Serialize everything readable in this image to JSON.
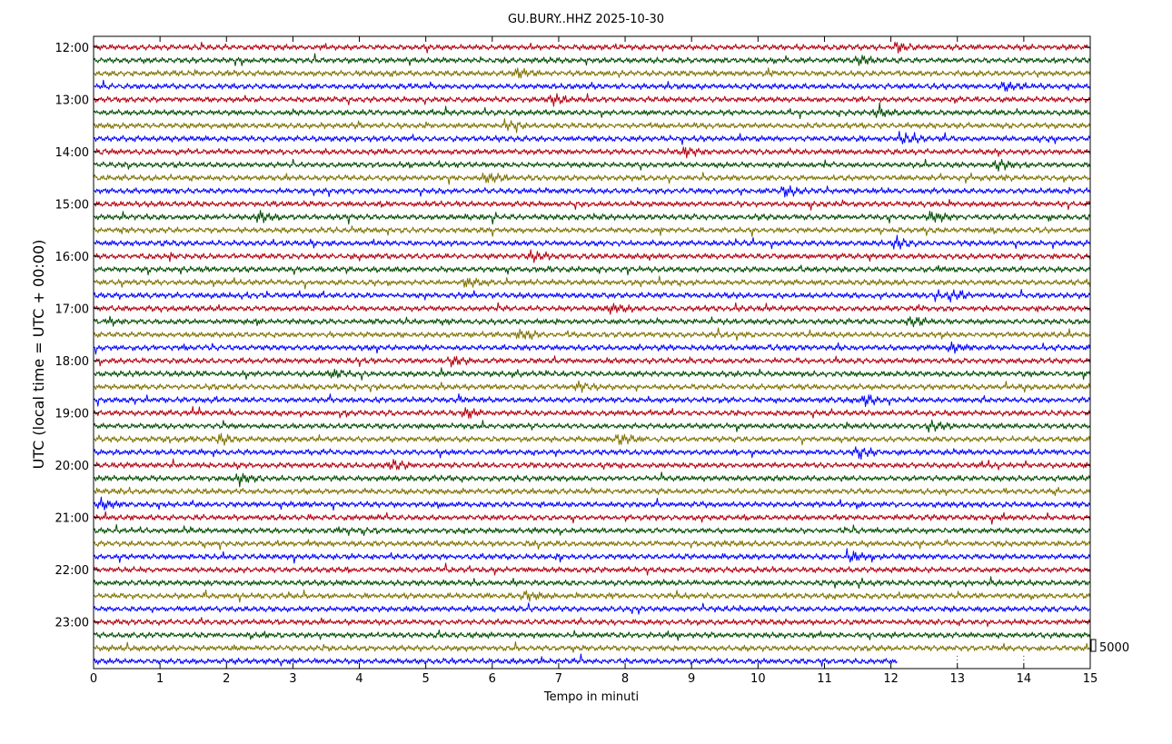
{
  "chart_data": {
    "type": "line",
    "title": "GU.BURY..HHZ 2025-10-30",
    "xlabel": "Tempo in minuti",
    "ylabel": "UTC (local time = UTC + 00:00)",
    "xlim": [
      0,
      15
    ],
    "x_ticks": [
      "0",
      "1",
      "2",
      "3",
      "4",
      "5",
      "6",
      "7",
      "8",
      "9",
      "10",
      "11",
      "12",
      "13",
      "14",
      "15"
    ],
    "y_tick_labels": [
      "12:00",
      "13:00",
      "14:00",
      "15:00",
      "16:00",
      "17:00",
      "18:00",
      "19:00",
      "20:00",
      "21:00",
      "22:00",
      "23:00"
    ],
    "trace_interval_minutes": 15,
    "trace_start": "12:00",
    "trace_count": 48,
    "last_trace_end_minute": 12.1,
    "trace_colors": [
      "#b2000f",
      "#004c00",
      "#7f7100",
      "#0000ff"
    ],
    "scale_label": "5000",
    "grid": "vertical dotted at 13 and 14 min below last trace",
    "events": [
      {
        "trace": 0,
        "minute": 12.1
      },
      {
        "trace": 1,
        "minute": 11.5
      },
      {
        "trace": 2,
        "minute": 6.4
      },
      {
        "trace": 3,
        "minute": 13.7
      },
      {
        "trace": 4,
        "minute": 6.9
      },
      {
        "trace": 5,
        "minute": 11.8
      },
      {
        "trace": 6,
        "minute": 6.2
      },
      {
        "trace": 7,
        "minute": 12.2
      },
      {
        "trace": 8,
        "minute": 8.9
      },
      {
        "trace": 9,
        "minute": 13.6
      },
      {
        "trace": 10,
        "minute": 5.9
      },
      {
        "trace": 11,
        "minute": 10.4
      },
      {
        "trace": 13,
        "minute": 2.5
      },
      {
        "trace": 13,
        "minute": 12.6
      },
      {
        "trace": 15,
        "minute": 12.1
      },
      {
        "trace": 16,
        "minute": 6.6
      },
      {
        "trace": 18,
        "minute": 5.6
      },
      {
        "trace": 19,
        "minute": 12.9
      },
      {
        "trace": 20,
        "minute": 7.8
      },
      {
        "trace": 21,
        "minute": 12.3
      },
      {
        "trace": 22,
        "minute": 6.4
      },
      {
        "trace": 23,
        "minute": 12.9
      },
      {
        "trace": 24,
        "minute": 5.4
      },
      {
        "trace": 25,
        "minute": 3.6
      },
      {
        "trace": 26,
        "minute": 7.3
      },
      {
        "trace": 27,
        "minute": 11.6
      },
      {
        "trace": 28,
        "minute": 5.6
      },
      {
        "trace": 29,
        "minute": 12.6
      },
      {
        "trace": 30,
        "minute": 1.9
      },
      {
        "trace": 30,
        "minute": 7.9
      },
      {
        "trace": 31,
        "minute": 11.5
      },
      {
        "trace": 32,
        "minute": 4.5
      },
      {
        "trace": 33,
        "minute": 2.2
      },
      {
        "trace": 35,
        "minute": 0.1
      },
      {
        "trace": 39,
        "minute": 11.4
      },
      {
        "trace": 42,
        "minute": 6.5
      }
    ]
  }
}
